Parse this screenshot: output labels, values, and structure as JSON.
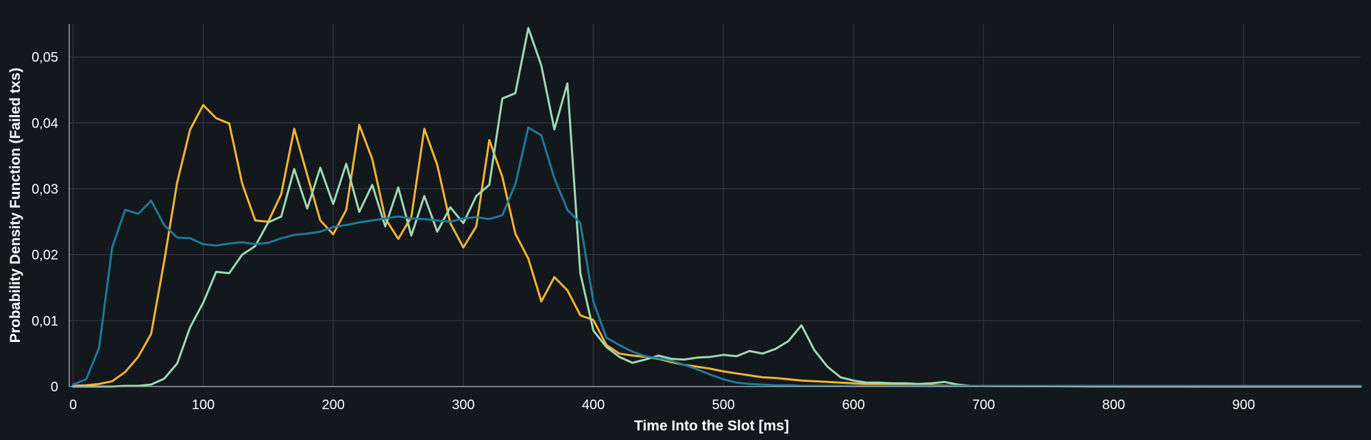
{
  "chart_data": {
    "type": "line",
    "title": "",
    "xlabel": "Time Into the Slot [ms]",
    "ylabel": "Probability Density Function (Failed txs)",
    "xlim": [
      -3,
      990
    ],
    "ylim": [
      0,
      0.055
    ],
    "x_ticks": [
      0,
      100,
      200,
      300,
      400,
      500,
      600,
      700,
      800,
      900
    ],
    "x_tick_labels": [
      "0",
      "100",
      "200",
      "300",
      "400",
      "500",
      "600",
      "700",
      "800",
      "900"
    ],
    "y_ticks": [
      0,
      0.01,
      0.02,
      0.03,
      0.04,
      0.05
    ],
    "y_tick_labels": [
      "0",
      "0,01",
      "0,02",
      "0,03",
      "0,04",
      "0,05"
    ],
    "grid": true,
    "legend": "none",
    "colors": {
      "background": "#13181d",
      "grid": "#3a4046",
      "axis": "#9aa4ad",
      "text": "#ffffff"
    },
    "series": [
      {
        "color": "#f5b731",
        "x": [
          0,
          10,
          20,
          30,
          40,
          50,
          60,
          70,
          80,
          90,
          100,
          110,
          120,
          130,
          140,
          150,
          160,
          170,
          180,
          190,
          200,
          210,
          220,
          230,
          240,
          250,
          260,
          270,
          280,
          290,
          300,
          310,
          320,
          330,
          340,
          350,
          360,
          370,
          380,
          390,
          400,
          410,
          420,
          430,
          440,
          450,
          460,
          470,
          480,
          490,
          500,
          510,
          520,
          530,
          540,
          550,
          560,
          570,
          580,
          590,
          600,
          620,
          640,
          660,
          680,
          700,
          750,
          800,
          850,
          900,
          950,
          990
        ],
        "y": [
          0.0001,
          0.0002,
          0.0004,
          0.0008,
          0.0022,
          0.0045,
          0.008,
          0.019,
          0.031,
          0.039,
          0.0427,
          0.0407,
          0.0399,
          0.0308,
          0.0252,
          0.025,
          0.0292,
          0.0391,
          0.0321,
          0.0252,
          0.0231,
          0.0268,
          0.0397,
          0.0345,
          0.0255,
          0.0224,
          0.0257,
          0.0391,
          0.0336,
          0.0248,
          0.0211,
          0.0243,
          0.0374,
          0.0318,
          0.0232,
          0.0194,
          0.0129,
          0.0166,
          0.0146,
          0.0108,
          0.0101,
          0.0063,
          0.005,
          0.0047,
          0.0045,
          0.0042,
          0.0037,
          0.0033,
          0.003,
          0.0027,
          0.0023,
          0.002,
          0.0017,
          0.0014,
          0.0013,
          0.0011,
          0.0009,
          0.0008,
          0.0007,
          0.0006,
          0.0005,
          0.0003,
          0.0003,
          0.0002,
          0.0001,
          0.0001,
          5e-05,
          3e-05,
          2e-05,
          1e-05,
          1e-05,
          0
        ]
      },
      {
        "color": "#9edbb4",
        "x": [
          0,
          10,
          20,
          30,
          40,
          50,
          60,
          70,
          80,
          90,
          100,
          110,
          120,
          130,
          140,
          150,
          160,
          170,
          180,
          190,
          200,
          210,
          220,
          230,
          240,
          250,
          260,
          270,
          280,
          290,
          300,
          310,
          320,
          330,
          340,
          350,
          360,
          370,
          380,
          390,
          400,
          410,
          420,
          430,
          440,
          450,
          460,
          470,
          480,
          490,
          500,
          510,
          520,
          530,
          540,
          550,
          560,
          570,
          580,
          590,
          600,
          610,
          620,
          630,
          640,
          650,
          660,
          670,
          680,
          690,
          700,
          750,
          800,
          850,
          900,
          950,
          990
        ],
        "y": [
          0,
          0,
          0,
          0,
          0.0001,
          0.0001,
          0.0003,
          0.0012,
          0.0035,
          0.009,
          0.0127,
          0.0174,
          0.0172,
          0.02,
          0.0213,
          0.0249,
          0.0258,
          0.033,
          0.027,
          0.0332,
          0.0277,
          0.0338,
          0.0265,
          0.0306,
          0.0243,
          0.0302,
          0.0229,
          0.0289,
          0.0235,
          0.0272,
          0.0248,
          0.0289,
          0.0306,
          0.0437,
          0.0445,
          0.0544,
          0.0487,
          0.039,
          0.046,
          0.0172,
          0.0085,
          0.006,
          0.0045,
          0.0036,
          0.0041,
          0.0047,
          0.0042,
          0.0041,
          0.0044,
          0.0045,
          0.0048,
          0.0046,
          0.0054,
          0.005,
          0.0057,
          0.0069,
          0.0093,
          0.0055,
          0.003,
          0.0014,
          0.0009,
          0.0006,
          0.0006,
          0.0005,
          0.0005,
          0.0004,
          0.0005,
          0.0007,
          0.0003,
          0.0001,
          0.0001,
          5e-05,
          2e-05,
          1e-05,
          0,
          0,
          0
        ]
      },
      {
        "color": "#1e7a9e",
        "x": [
          0,
          10,
          20,
          30,
          40,
          50,
          60,
          70,
          80,
          90,
          100,
          110,
          120,
          130,
          140,
          150,
          160,
          170,
          180,
          190,
          200,
          210,
          220,
          230,
          240,
          250,
          260,
          270,
          280,
          290,
          300,
          310,
          320,
          330,
          340,
          350,
          360,
          370,
          380,
          390,
          400,
          410,
          420,
          430,
          440,
          450,
          460,
          470,
          480,
          490,
          500,
          510,
          520,
          530,
          540,
          550,
          560,
          570,
          580,
          590,
          600,
          650,
          700,
          750,
          800,
          850,
          900,
          950,
          990
        ],
        "y": [
          0.0003,
          0.0011,
          0.0059,
          0.0211,
          0.0268,
          0.0262,
          0.0282,
          0.0245,
          0.0226,
          0.0225,
          0.0216,
          0.0214,
          0.0217,
          0.0219,
          0.0216,
          0.0218,
          0.0225,
          0.023,
          0.0232,
          0.0235,
          0.0242,
          0.0245,
          0.0249,
          0.0252,
          0.0255,
          0.0258,
          0.0255,
          0.0254,
          0.0252,
          0.025,
          0.0255,
          0.0257,
          0.0254,
          0.026,
          0.0307,
          0.0393,
          0.0381,
          0.0316,
          0.0268,
          0.0248,
          0.0129,
          0.0074,
          0.0063,
          0.0053,
          0.0046,
          0.0043,
          0.0039,
          0.0033,
          0.0026,
          0.0018,
          0.0011,
          0.0006,
          0.0004,
          0.0003,
          0.0002,
          0.0002,
          0.0001,
          0.0001,
          0.0001,
          0.0001,
          0.0001,
          0.0001,
          0.0001,
          0.0001,
          0.0001,
          0.0001,
          0.0001,
          0.0001,
          0.0001
        ]
      }
    ]
  }
}
